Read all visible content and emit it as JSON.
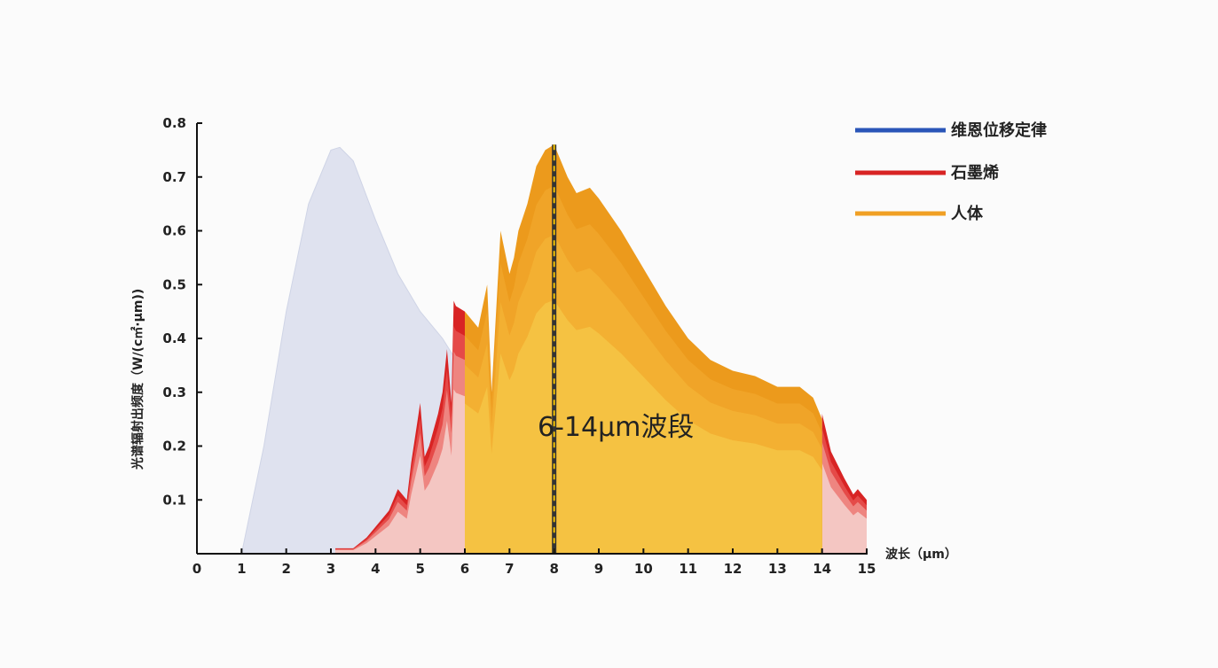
{
  "chart_data": {
    "type": "area",
    "xlabel": "波长（μm）",
    "ylabel": "光谱辐射出频度（W/(c㎡·μm))",
    "xlim": [
      0,
      15
    ],
    "ylim": [
      0,
      0.8
    ],
    "xticks": [
      "0",
      "1",
      "2",
      "3",
      "4",
      "5",
      "6",
      "7",
      "8",
      "9",
      "10",
      "11",
      "12",
      "13",
      "14",
      "15"
    ],
    "yticks": [
      "0.1",
      "0.2",
      "0.3",
      "0.4",
      "0.5",
      "0.6",
      "0.7",
      "0.8"
    ],
    "annotation": "6-14μm波段",
    "marker_x": 8,
    "legend_position": "top-right",
    "series": [
      {
        "name": "维恩位移定律",
        "color": "#2a55b8",
        "fill": "#dfe2ef",
        "x": [
          1,
          1.5,
          2,
          2.5,
          3,
          3.2,
          3.5,
          4,
          4.5,
          5,
          5.5,
          5.8,
          6
        ],
        "y": [
          0,
          0.2,
          0.45,
          0.65,
          0.75,
          0.755,
          0.73,
          0.62,
          0.52,
          0.45,
          0.4,
          0.36,
          0.3
        ]
      },
      {
        "name": "石墨烯",
        "color": "#d82424",
        "fill": "#f4c6c2",
        "x": [
          3.1,
          3.5,
          3.8,
          4,
          4.2,
          4.3,
          4.5,
          4.7,
          4.8,
          5,
          5.1,
          5.2,
          5.4,
          5.5,
          5.6,
          5.7,
          5.75,
          5.8,
          6,
          6,
          14,
          14,
          14.2,
          14.5,
          14.7,
          14.8,
          15
        ],
        "y": [
          0.01,
          0.01,
          0.03,
          0.05,
          0.07,
          0.08,
          0.12,
          0.1,
          0.17,
          0.28,
          0.18,
          0.2,
          0.26,
          0.3,
          0.38,
          0.28,
          0.47,
          0.46,
          0.45,
          0,
          0,
          0.26,
          0.19,
          0.14,
          0.11,
          0.12,
          0.1
        ]
      },
      {
        "name": "人体",
        "color": "#f0a024",
        "fill": "#f5c242",
        "x": [
          6,
          6.2,
          6.3,
          6.5,
          6.6,
          6.8,
          7,
          7.1,
          7.2,
          7.4,
          7.6,
          7.8,
          8,
          8.3,
          8.5,
          8.8,
          9,
          9.5,
          10,
          10.5,
          11,
          11.5,
          12,
          12.5,
          13,
          13.5,
          13.8,
          14
        ],
        "y": [
          0.45,
          0.43,
          0.42,
          0.5,
          0.3,
          0.6,
          0.52,
          0.55,
          0.6,
          0.65,
          0.72,
          0.75,
          0.76,
          0.7,
          0.67,
          0.68,
          0.66,
          0.6,
          0.53,
          0.46,
          0.4,
          0.36,
          0.34,
          0.33,
          0.31,
          0.31,
          0.29,
          0.25
        ]
      }
    ]
  }
}
